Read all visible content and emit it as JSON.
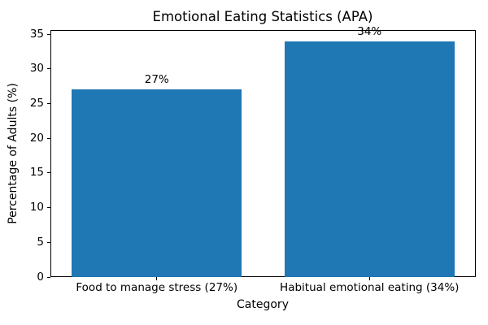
{
  "chart_data": {
    "type": "bar",
    "title": "Emotional Eating Statistics (APA)",
    "xlabel": "Category",
    "ylabel": "Percentage of Adults (%)",
    "categories": [
      "Food to manage stress (27%)",
      "Habitual emotional eating (34%)"
    ],
    "values": [
      27,
      34
    ],
    "bar_labels": [
      "27%",
      "34%"
    ],
    "yticks": [
      0,
      5,
      10,
      15,
      20,
      25,
      30,
      35
    ],
    "ylim": [
      0,
      35.6
    ],
    "bar_color": "#1f77b4",
    "grid": false,
    "legend": null
  }
}
